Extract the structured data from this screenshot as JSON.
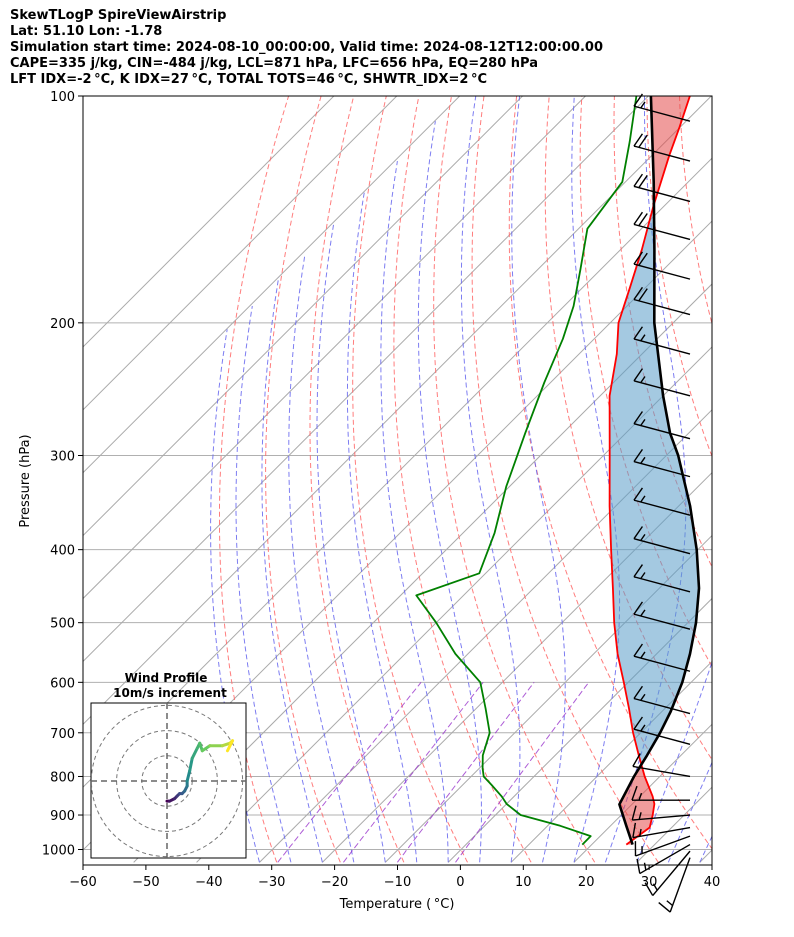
{
  "header": {
    "line1": "SkewTLogP SpireViewAirstrip",
    "line2": "Lat: 51.10   Lon: -1.78",
    "line3": "Simulation start time: 2024-08-10_00:00:00, Valid time: 2024-08-12T12:00:00.00",
    "line4": "CAPE=335 j/kg, CIN=-484 j/kg, LCL=871 hPa, LFC=656 hPa, EQ=280 hPa",
    "line5": "LFT IDX=-2 °C, K IDX=27 °C, TOTAL TOTS=46 °C, SHWTR_IDX=2 °C"
  },
  "chart_data": {
    "type": "skewt",
    "xlabel": "Temperature ( °C)",
    "ylabel": "Pressure (hPa)",
    "xlim": [
      -60,
      40
    ],
    "ylim": [
      1040,
      100
    ],
    "x_ticks": [
      -60,
      -50,
      -40,
      -30,
      -20,
      -10,
      0,
      10,
      20,
      30,
      40
    ],
    "x_tick_labels": [
      "−60",
      "−50",
      "−40",
      "−30",
      "−20",
      "−10",
      "0",
      "10",
      "20",
      "30",
      "40"
    ],
    "y_ticks": [
      1000,
      900,
      800,
      700,
      600,
      500,
      400,
      300,
      200,
      100
    ],
    "y_tick_labels": [
      "1000",
      "900",
      "800",
      "700",
      "600",
      "500",
      "400",
      "300",
      "200",
      "100"
    ],
    "grid": true,
    "colors": {
      "temperature": "#ff0000",
      "dewpoint": "#008000",
      "parcel": "#000000",
      "cape_fill": "#e34a4a",
      "cin_fill": "#5a9cc9",
      "dry_adiabat": "#ff6666",
      "moist_adiabat": "#6666ee",
      "mixing_ratio": "#9933cc",
      "isotherm": "#aaaaaa"
    },
    "series": [
      {
        "name": "temperature",
        "pressure": [
          985,
          960,
          935,
          900,
          870,
          850,
          800,
          750,
          700,
          650,
          600,
          550,
          500,
          450,
          400,
          350,
          300,
          250,
          220,
          200,
          180,
          160,
          140,
          120,
          110,
          100
        ],
        "temp": [
          25.5,
          26.0,
          26.5,
          25.0,
          23.5,
          22.0,
          17.6,
          13.3,
          8.8,
          4.3,
          -0.7,
          -6.2,
          -11.7,
          -17.4,
          -23.8,
          -31.0,
          -39.0,
          -48.5,
          -54.0,
          -58.7,
          -62.4,
          -66.6,
          -71.7,
          -77.2,
          -80.1,
          -83.4
        ]
      },
      {
        "name": "dewpoint",
        "pressure": [
          985,
          960,
          930,
          900,
          870,
          850,
          820,
          800,
          780,
          750,
          700,
          650,
          600,
          550,
          500,
          460,
          430,
          380,
          330,
          280,
          240,
          210,
          190,
          170,
          150,
          130,
          115,
          100
        ],
        "dewpoint": [
          18.5,
          18.5,
          12.0,
          4.0,
          0.0,
          -2.0,
          -5.5,
          -8.0,
          -9.5,
          -11.5,
          -14.0,
          -18.5,
          -23.5,
          -32.0,
          -40.0,
          -47.5,
          -41.0,
          -45.0,
          -50.5,
          -56.0,
          -61.0,
          -65.0,
          -68.5,
          -73.2,
          -78.6,
          -80.5,
          -85.7,
          -91.9
        ]
      },
      {
        "name": "parcel",
        "pressure": [
          985,
          930,
          871,
          800,
          750,
          700,
          656,
          600,
          550,
          500,
          450,
          400,
          350,
          300,
          280,
          250,
          200,
          160,
          130,
          100
        ],
        "temp": [
          26.5,
          22.5,
          18.0,
          15.9,
          14.6,
          13.1,
          11.4,
          8.6,
          5.3,
          1.3,
          -3.7,
          -10.2,
          -18.2,
          -28.1,
          -33.0,
          -40.0,
          -53.0,
          -64.6,
          -75.5,
          -89.6
        ]
      }
    ],
    "wind_barbs": {
      "pressure": [
        1025,
        1005,
        985,
        960,
        935,
        900,
        860,
        800,
        725,
        660,
        580,
        510,
        455,
        405,
        360,
        320,
        285,
        250,
        220,
        195,
        175,
        155,
        138,
        122,
        108
      ],
      "speed_kt": [
        15,
        15,
        15,
        15,
        15,
        15,
        15,
        15,
        15,
        15,
        15,
        15,
        15,
        15,
        15,
        15,
        15,
        15,
        15,
        20,
        20,
        20,
        20,
        20,
        15
      ],
      "direction_deg": [
        200,
        220,
        240,
        250,
        260,
        265,
        270,
        280,
        285,
        285,
        285,
        285,
        285,
        285,
        285,
        285,
        285,
        285,
        285,
        285,
        285,
        285,
        285,
        285,
        285
      ]
    },
    "hodograph": {
      "title": "Wind Profile",
      "subtitle": "10m/s increment",
      "rings_ms": [
        10,
        20,
        30
      ],
      "u": [
        0,
        1,
        3,
        4,
        5,
        6,
        7,
        8,
        8,
        9,
        10,
        12,
        13,
        14,
        17,
        22,
        25,
        26,
        24
      ],
      "v": [
        -8,
        -8,
        -7,
        -6,
        -5,
        -5,
        -4,
        -2,
        0,
        4,
        9,
        13,
        15,
        12,
        14,
        14,
        15,
        16,
        12
      ]
    }
  }
}
